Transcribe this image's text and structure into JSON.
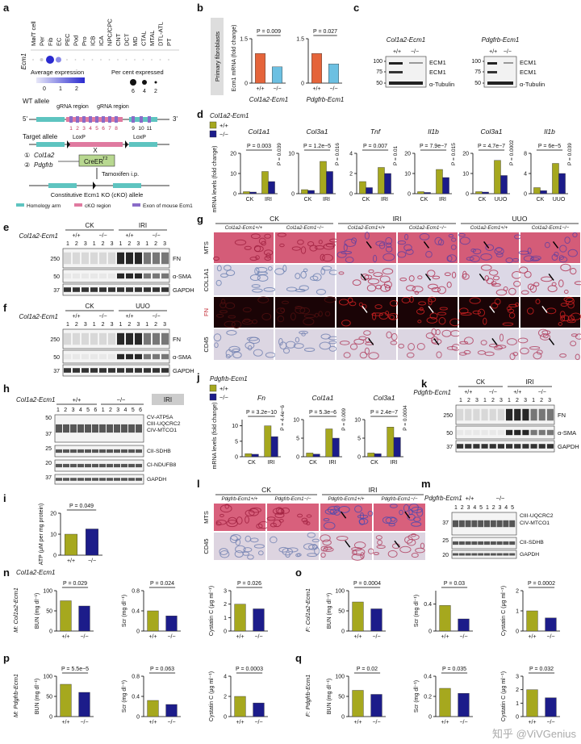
{
  "watermark": "知乎 @ViVGenius",
  "a": {
    "letter": "a",
    "cell_types": [
      "Mø/T cell",
      "Per",
      "Fib",
      "EC",
      "PEC",
      "Pod",
      "Pro",
      "ICB",
      "ICA",
      "NPC/CPC",
      "CNT",
      "DCT",
      "MD",
      "CTAL",
      "MTAL",
      "DTL-ATL",
      "PT"
    ],
    "gene": "Ecm1",
    "avg_label": "Average expression",
    "avg_ticks": [
      0,
      1,
      2
    ],
    "pct_label": "Per cent expressed",
    "pct_ticks": [
      6,
      4,
      2
    ],
    "wt_allele": "WT allele",
    "grna": [
      "gRNA region",
      "gRNA region"
    ],
    "five": "5'",
    "three": "3'",
    "exons": [
      1,
      2,
      3,
      4,
      5,
      6,
      7,
      8,
      9,
      10,
      11
    ],
    "target_allele": "Target allele",
    "loxp": [
      "LoxP",
      "LoxP"
    ],
    "driver_nums": [
      "①",
      "②"
    ],
    "drivers": [
      "Col1a2",
      "Pdgfrb"
    ],
    "cre": "CreER",
    "cre_sup": "T2",
    "cross": "X",
    "tamoxifen": "Tamoxifen i.p.",
    "cko": "Constitutive Ecm1 KO (cKO) allele",
    "key": [
      "Homology arm",
      "cKO region",
      "Exon of mouse Ecm1"
    ]
  },
  "b": {
    "letter": "b",
    "cell": "Primary fibroblasts",
    "ylabel": "Ecm1 mRNA (fold change)",
    "colors": [
      "#e5643a",
      "#6cc0e2"
    ],
    "charts": [
      {
        "line": "Col1a2-Ecm1",
        "yticks": [
          0,
          1.5
        ],
        "ylim": [
          0,
          1.5
        ],
        "categories": [
          "+/+",
          "−/−"
        ],
        "values": [
          1,
          0.55
        ],
        "pvalues": [
          "P = 0.009"
        ]
      },
      {
        "line": "Pdgfrb-Ecm1",
        "yticks": [
          0,
          1.5
        ],
        "ylim": [
          0,
          1.5
        ],
        "categories": [
          "+/+",
          "−/−"
        ],
        "values": [
          1,
          0.65
        ],
        "pvalues": [
          "P = 0.027"
        ]
      }
    ]
  },
  "c": {
    "letter": "c",
    "blots": [
      {
        "line": "Col1a2-Ecm1",
        "genotypes": [
          "+/+",
          "−/−"
        ],
        "markers": [
          100,
          75,
          50
        ],
        "proteins": [
          "ECM1",
          "ECM1",
          "α-Tubulin"
        ]
      },
      {
        "line": "Pdgfrb-Ecm1",
        "genotypes": [
          "+/+",
          "−/−"
        ],
        "markers": [
          100,
          75,
          50
        ],
        "proteins": [
          "ECM1",
          "ECM1",
          "α-Tubulin"
        ]
      }
    ]
  },
  "d": {
    "letter": "d",
    "line": "Col1a2-Ecm1",
    "legend": [
      "+/+",
      "−/−"
    ],
    "colors": [
      "#a6a81e",
      "#1c1c8a"
    ],
    "ylabel": "mRNA levels (fold change)",
    "charts": [
      {
        "title": "Col1a1",
        "yticks": [
          0,
          10,
          20
        ],
        "ylim": [
          0,
          20
        ],
        "categories": [
          "CK",
          "IRI"
        ],
        "series": [
          [
            1,
            11
          ],
          [
            0.8,
            6
          ]
        ],
        "pvalues": [
          "P = 0.003",
          "P = 0.039"
        ]
      },
      {
        "title": "Col3a1",
        "yticks": [
          0,
          10
        ],
        "ylim": [
          0,
          10
        ],
        "categories": [
          "CK",
          "IRI"
        ],
        "series": [
          [
            1,
            8
          ],
          [
            0.8,
            5.5
          ]
        ],
        "pvalues": [
          "P = 1.2e−5",
          "P = 0.016"
        ]
      },
      {
        "title": "Tnf",
        "yticks": [
          0,
          2,
          4
        ],
        "ylim": [
          0,
          4
        ],
        "categories": [
          "CK",
          "IRI"
        ],
        "series": [
          [
            1.2,
            2.6
          ],
          [
            0.6,
            2
          ]
        ],
        "pvalues": [
          "P = 0.007",
          "P = 0.01"
        ]
      },
      {
        "title": "Il1b",
        "yticks": [
          0,
          10,
          20
        ],
        "ylim": [
          0,
          20
        ],
        "categories": [
          "CK",
          "IRI"
        ],
        "series": [
          [
            1,
            12
          ],
          [
            0.6,
            8
          ]
        ],
        "pvalues": [
          "P = 7.9e−7",
          "P = 0.015"
        ]
      },
      {
        "title": "Col3a1",
        "yticks": [
          0,
          10,
          20
        ],
        "ylim": [
          0,
          20
        ],
        "categories": [
          "CK",
          "UUO"
        ],
        "series": [
          [
            1,
            16.5
          ],
          [
            0.8,
            9
          ]
        ],
        "pvalues": [
          "P = 4.7e−7",
          "P = 0.0002"
        ]
      },
      {
        "title": "Il1b",
        "yticks": [
          0,
          4,
          8
        ],
        "ylim": [
          0,
          8
        ],
        "categories": [
          "CK",
          "UUO"
        ],
        "series": [
          [
            1.2,
            6
          ],
          [
            0.6,
            4
          ]
        ],
        "pvalues": [
          "P = 6e−5",
          "P = 0.039"
        ]
      }
    ]
  },
  "e": {
    "letter": "e",
    "line": "Col1a2-Ecm1",
    "conditions": [
      "CK",
      "IRI"
    ],
    "genotypes": [
      "+/+",
      "−/−",
      "+/+",
      "−/−"
    ],
    "lanes": "1 2 3 1 2 3 1 2 3 1 2 3",
    "markers": [
      250,
      50,
      37
    ],
    "proteins": [
      "FN",
      "α-SMA",
      "GAPDH"
    ]
  },
  "f": {
    "letter": "f",
    "line": "Col1a2-Ecm1",
    "conditions": [
      "CK",
      "UUO"
    ],
    "genotypes": [
      "+/+",
      "−/−",
      "+/+",
      "−/−"
    ],
    "lanes": "1 2 3 1 2 3 1 2 3 1 2 3",
    "markers": [
      250,
      50,
      37
    ],
    "proteins": [
      "FN",
      "α-SMA",
      "GAPDH"
    ]
  },
  "g": {
    "letter": "g",
    "conditions": [
      "CK",
      "IRI",
      "UUO"
    ],
    "genotypes": [
      "Col1a2-Ecm1+/+",
      "Col1a2-Ecm1−/−",
      "Col1a2-Ecm1+/+",
      "Col1a2-Ecm1−/−",
      "Col1a2-Ecm1+/+",
      "Col1a2-Ecm1−/−"
    ],
    "rows": [
      "MTS",
      "COL1A1",
      "FN",
      "CD45"
    ]
  },
  "h": {
    "letter": "h",
    "line": "Col1a2-Ecm1",
    "genotypes": [
      "+/+",
      "−/−"
    ],
    "condition": "IRI",
    "lanes": "1 2 3 4 5 6 1 2 3 4 5 6",
    "markers": [
      50,
      37,
      25,
      20,
      37
    ],
    "proteins": [
      "CV-ATP5A",
      "CIII-UQCRC2",
      "CIV-MTCO1",
      "CII-SDHB",
      "CI-NDUFB8",
      "GAPDH"
    ]
  },
  "i": {
    "letter": "i",
    "line": "Col1a2-Ecm1",
    "colors": [
      "#a6a81e",
      "#1c1c8a"
    ],
    "chart": {
      "ylabel": "ATP (μM per mg protein)",
      "yticks": [
        0,
        10,
        20
      ],
      "ylim": [
        0,
        20
      ],
      "categories": [
        "+/+",
        "−/−"
      ],
      "values": [
        10,
        12.5
      ],
      "pvalues": [
        "P = 0.049"
      ]
    }
  },
  "j": {
    "letter": "j",
    "line": "Pdgfrb-Ecm1",
    "legend": [
      "+/+",
      "−/−"
    ],
    "colors": [
      "#a6a81e",
      "#1c1c8a"
    ],
    "ylabel": "mRNA levels (fold change)",
    "charts": [
      {
        "title": "Fn",
        "yticks": [
          0,
          5,
          10
        ],
        "ylim": [
          0,
          12
        ],
        "categories": [
          "CK",
          "IRI"
        ],
        "series": [
          [
            1,
            10
          ],
          [
            0.8,
            6.5
          ]
        ],
        "pvalues": [
          "P = 3.2e−10",
          "P = 4.4e−6"
        ]
      },
      {
        "title": "Col1a1",
        "yticks": [
          0,
          5,
          10
        ],
        "ylim": [
          0,
          10
        ],
        "categories": [
          "CK",
          "IRI"
        ],
        "series": [
          [
            1,
            7.5
          ],
          [
            0.7,
            5
          ]
        ],
        "pvalues": [
          "P = 5.3e−6",
          "P = 0.009"
        ]
      },
      {
        "title": "Col3a1",
        "yticks": [
          0,
          5,
          10
        ],
        "ylim": [
          0,
          10
        ],
        "categories": [
          "CK",
          "IRI"
        ],
        "series": [
          [
            1,
            8
          ],
          [
            0.8,
            5.2
          ]
        ],
        "pvalues": [
          "P = 2.4e−7",
          "P = 0.0004"
        ]
      }
    ]
  },
  "k": {
    "letter": "k",
    "line": "Pdgfrb-Ecm1",
    "conditions": [
      "CK",
      "IRI"
    ],
    "genotypes": [
      "+/+",
      "−/−",
      "+/+",
      "−/−"
    ],
    "lanes": "1 2 3 1 2 3 1 2 3 1 2 3",
    "markers": [
      250,
      50,
      37
    ],
    "proteins": [
      "FN",
      "α-SMA",
      "GAPDH"
    ]
  },
  "l": {
    "letter": "l",
    "conditions": [
      "CK",
      "IRI"
    ],
    "genotypes": [
      "Pdgfrb-Ecm1+/+",
      "Pdgfrb-Ecm1−/−",
      "Pdgfrb-Ecm1+/+",
      "Pdgfrb-Ecm1−/−"
    ],
    "rows": [
      "MTS",
      "CD45"
    ]
  },
  "m": {
    "letter": "m",
    "line": "Pdgfrb-Ecm1",
    "genotypes": [
      "+/+",
      "−/−"
    ],
    "lanes": "1 2 3 4 5 1 2 3 4 5",
    "markers": [
      37,
      25,
      20
    ],
    "proteins": [
      "CIII-UQCRC2",
      "CIV-MTCO1",
      "CII-SDHB",
      "GAPDH"
    ]
  },
  "serum": {
    "colors": [
      "#a6a81e",
      "#1c1c8a"
    ],
    "panels": [
      {
        "letter": "n",
        "label": "M: Col1a2-Ecm1",
        "charts": [
          {
            "ylabel": "BUN (mg dl⁻¹)",
            "yticks": [
              0,
              50,
              100
            ],
            "ylim": [
              0,
              100
            ],
            "categories": [
              "+/+",
              "−/−"
            ],
            "values": [
              75,
              62
            ],
            "pvalues": [
              "P = 0.029"
            ]
          },
          {
            "ylabel": "Scr (mg dl⁻¹)",
            "yticks": [
              0,
              0.4,
              0.8
            ],
            "ylim": [
              0,
              0.8
            ],
            "categories": [
              "+/+",
              "−/−"
            ],
            "values": [
              0.4,
              0.3
            ],
            "pvalues": [
              "P = 0.024"
            ]
          },
          {
            "ylabel": "Cystatin C (μg ml⁻¹)",
            "yticks": [
              0,
              1,
              2,
              3
            ],
            "ylim": [
              0,
              3
            ],
            "categories": [
              "+/+",
              "−/−"
            ],
            "values": [
              2,
              1.65
            ],
            "pvalues": [
              "P = 0.026"
            ]
          }
        ]
      },
      {
        "letter": "o",
        "label": "F: Col1a2-Ecm1",
        "charts": [
          {
            "ylabel": "BUN (mg dl⁻¹)",
            "yticks": [
              0,
              50,
              100
            ],
            "ylim": [
              0,
              100
            ],
            "categories": [
              "+/+",
              "−/−"
            ],
            "values": [
              72,
              55
            ],
            "pvalues": [
              "P = 0.0004"
            ]
          },
          {
            "ylabel": "Scr (mg dl⁻¹)",
            "yticks": [
              0,
              0.4
            ],
            "ylim": [
              0,
              0.6
            ],
            "categories": [
              "+/+",
              "−/−"
            ],
            "values": [
              0.38,
              0.18
            ],
            "pvalues": [
              "P = 0.03"
            ]
          },
          {
            "ylabel": "Cystatin C (μg ml⁻¹)",
            "yticks": [
              0,
              1,
              2
            ],
            "ylim": [
              0,
              2
            ],
            "categories": [
              "+/+",
              "−/−"
            ],
            "values": [
              1,
              0.65
            ],
            "pvalues": [
              "P = 0.0002"
            ]
          }
        ]
      },
      {
        "letter": "p",
        "label": "M: Pdgfrb-Ecm1",
        "charts": [
          {
            "ylabel": "BUN (mg dl⁻¹)",
            "yticks": [
              0,
              50,
              100
            ],
            "ylim": [
              0,
              100
            ],
            "categories": [
              "+/+",
              "−/−"
            ],
            "values": [
              80,
              60
            ],
            "pvalues": [
              "P = 5.5e−5"
            ]
          },
          {
            "ylabel": "Scr (mg dl⁻¹)",
            "yticks": [
              0,
              0.4,
              0.8
            ],
            "ylim": [
              0,
              0.8
            ],
            "categories": [
              "+/+",
              "−/−"
            ],
            "values": [
              0.32,
              0.24
            ],
            "pvalues": [
              "P = 0.063"
            ]
          },
          {
            "ylabel": "Cystatin C (μg ml⁻¹)",
            "yticks": [
              0,
              2,
              4
            ],
            "ylim": [
              0,
              4
            ],
            "categories": [
              "+/+",
              "−/−"
            ],
            "values": [
              2,
              1.35
            ],
            "pvalues": [
              "P = 0.0003"
            ]
          }
        ]
      },
      {
        "letter": "q",
        "label": "F: Pdgfrb-Ecm1",
        "charts": [
          {
            "ylabel": "BUN (mg dl⁻¹)",
            "yticks": [
              0,
              50,
              100
            ],
            "ylim": [
              0,
              100
            ],
            "categories": [
              "+/+",
              "−/−"
            ],
            "values": [
              65,
              55
            ],
            "pvalues": [
              "P = 0.02"
            ]
          },
          {
            "ylabel": "Scr (mg dl⁻¹)",
            "yticks": [
              0,
              0.2,
              0.4
            ],
            "ylim": [
              0,
              0.4
            ],
            "categories": [
              "+/+",
              "−/−"
            ],
            "values": [
              0.28,
              0.23
            ],
            "pvalues": [
              "P = 0.035"
            ]
          },
          {
            "ylabel": "Cystatin C (μg ml⁻¹)",
            "yticks": [
              0,
              1,
              2,
              3
            ],
            "ylim": [
              0,
              3
            ],
            "categories": [
              "+/+",
              "−/−"
            ],
            "values": [
              2,
              1.4
            ],
            "pvalues": [
              "P = 0.032"
            ]
          }
        ]
      }
    ]
  }
}
